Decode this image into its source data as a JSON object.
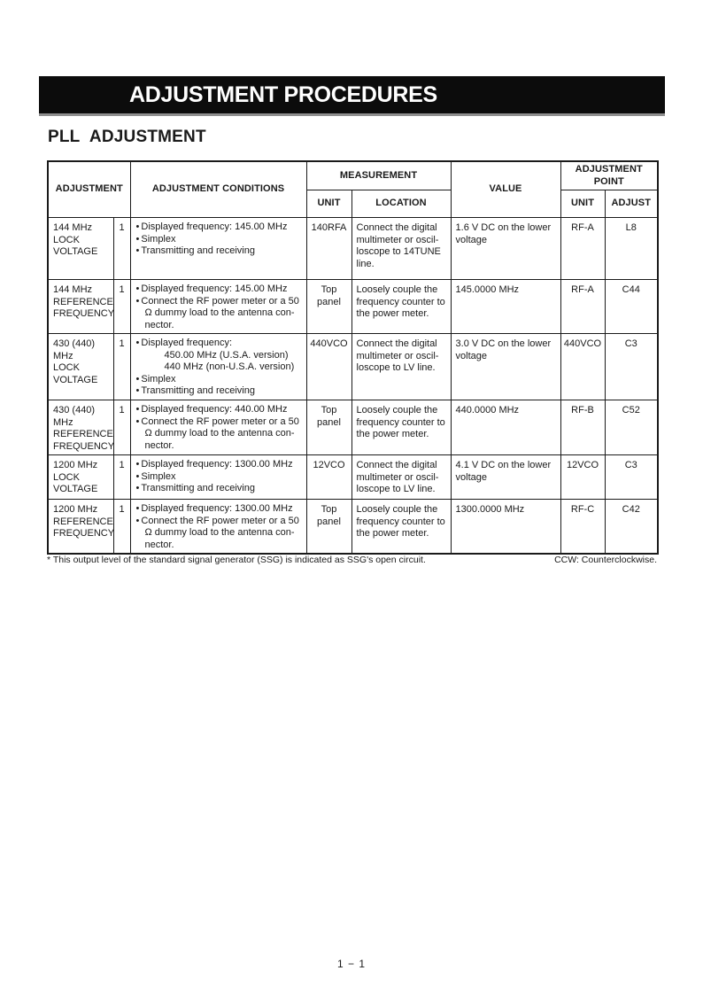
{
  "page": {
    "banner_title": "ADJUSTMENT PROCEDURES",
    "section_title": "PLL ADJUSTMENT",
    "footnote_left": "* This output level of the standard signal generator (SSG) is indicated as SSG's open circuit.",
    "footnote_right": "CCW: Counterclockwise.",
    "page_number": "1 − 1"
  },
  "table": {
    "bullet_char": "•",
    "headers": {
      "adjustment": "ADJUSTMENT",
      "conditions": "ADJUSTMENT CONDITIONS",
      "measurement": "MEASUREMENT",
      "meas_unit": "UNIT",
      "meas_location": "LOCATION",
      "value": "VALUE",
      "adjustment_point": "ADJUSTMENT POINT",
      "ap_unit": "UNIT",
      "ap_adjust": "ADJUST"
    },
    "rows": [
      {
        "adjustment_lines": [
          "144 MHz",
          "LOCK",
          "VOLTAGE"
        ],
        "step": "1",
        "conditions": [
          {
            "bullet": true,
            "text": "Displayed frequency: 145.00 MHz"
          },
          {
            "bullet": true,
            "text": "Simplex"
          },
          {
            "bullet": true,
            "text": "Transmitting and receiving"
          }
        ],
        "meas_unit": "140RFA",
        "location": "Connect the digital multimeter or oscil- loscope to 14TUNE line.",
        "value": "1.6 V DC on the lower voltage",
        "ap_unit": "RF-A",
        "adjust": "L8"
      },
      {
        "adjustment_lines": [
          "144 MHz",
          "REFERENCE",
          "FREQUENCY"
        ],
        "step": "1",
        "conditions": [
          {
            "bullet": true,
            "text": "Displayed frequency: 145.00 MHz"
          },
          {
            "bullet": true,
            "text": "Connect the RF power meter or a 50 Ω dummy load to the antenna con- nector."
          }
        ],
        "meas_unit": [
          "Top",
          "panel"
        ],
        "location": "Loosely couple the frequency counter to the power meter.",
        "value": "145.0000 MHz",
        "ap_unit": "RF-A",
        "adjust": "C44"
      },
      {
        "adjustment_lines": [
          "430 (440)",
          "MHz",
          "LOCK",
          "VOLTAGE"
        ],
        "step": "1",
        "conditions": [
          {
            "bullet": true,
            "text": "Displayed frequency:"
          },
          {
            "indent": true,
            "text": "450.00 MHz (U.S.A. version)"
          },
          {
            "indent": true,
            "text": "440 MHz (non-U.S.A. version)"
          },
          {
            "bullet": true,
            "text": "Simplex"
          },
          {
            "bullet": true,
            "text": "Transmitting and receiving"
          }
        ],
        "meas_unit": "440VCO",
        "location": "Connect the digital multimeter or oscil- loscope to LV line.",
        "value": "3.0 V DC on the lower voltage",
        "ap_unit": "440VCO",
        "adjust": "C3"
      },
      {
        "adjustment_lines": [
          "430 (440)",
          "MHz",
          "REFERENCE",
          "FREQUENCY"
        ],
        "step": "1",
        "conditions": [
          {
            "bullet": true,
            "text": "Displayed frequency: 440.00 MHz"
          },
          {
            "bullet": true,
            "text": "Connect the RF power meter or a 50 Ω dummy load to the antenna con- nector."
          }
        ],
        "meas_unit": [
          "Top",
          "panel"
        ],
        "location": "Loosely couple the frequency counter to the power meter.",
        "value": "440.0000 MHz",
        "ap_unit": "RF-B",
        "adjust": "C52"
      },
      {
        "adjustment_lines": [
          "1200 MHz",
          "LOCK",
          "VOLTAGE"
        ],
        "step": "1",
        "conditions": [
          {
            "bullet": true,
            "text": "Displayed frequency: 1300.00 MHz"
          },
          {
            "bullet": true,
            "text": "Simplex"
          },
          {
            "bullet": true,
            "text": "Transmitting and receiving"
          }
        ],
        "meas_unit": "12VCO",
        "location": "Connect the digital multimeter or oscil- loscope to LV line.",
        "value": "4.1 V DC on the lower voltage",
        "ap_unit": "12VCO",
        "adjust": "C3"
      },
      {
        "adjustment_lines": [
          "1200 MHz",
          "REFERENCE",
          "FREQUENCY"
        ],
        "step": "1",
        "conditions": [
          {
            "bullet": true,
            "text": "Displayed frequency: 1300.00 MHz"
          },
          {
            "bullet": true,
            "text": "Connect the RF power meter or a 50 Ω dummy load to the antenna con- nector."
          }
        ],
        "meas_unit": [
          "Top",
          "panel"
        ],
        "location": "Loosely couple the frequency counter to the power meter.",
        "value": "1300.0000 MHz",
        "ap_unit": "RF-C",
        "adjust": "C42"
      }
    ]
  }
}
